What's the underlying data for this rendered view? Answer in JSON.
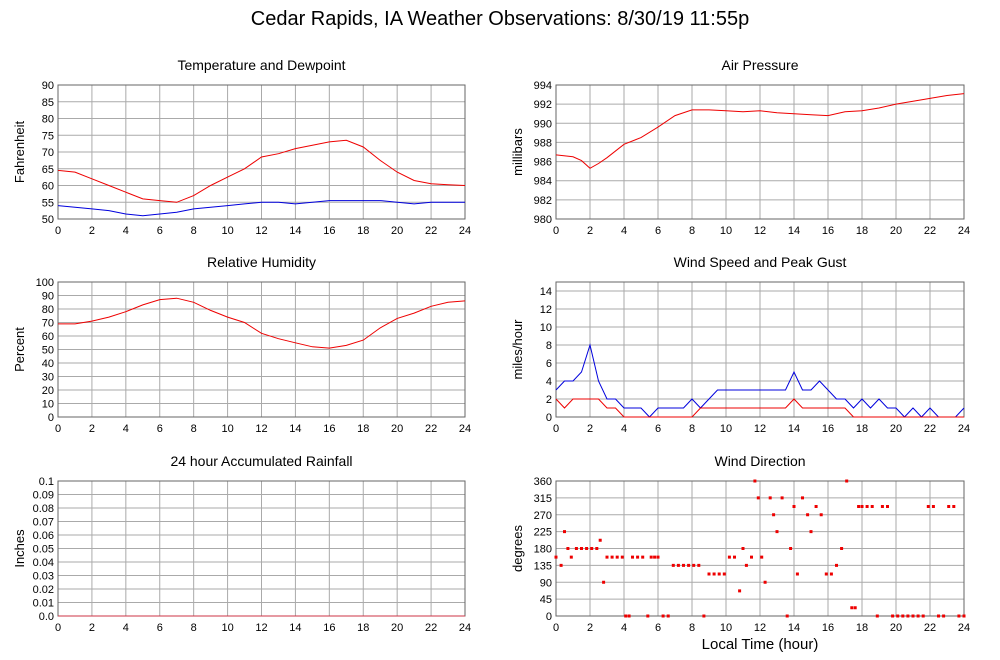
{
  "title": "Cedar Rapids, IA Weather Observations: 8/30/19 11:55p",
  "x_caption": "Local Time (hour)",
  "colors": {
    "red": "#ee0000",
    "blue": "#0000dd",
    "grid": "#aaaaaa",
    "frame": "#666666",
    "rain": "#cc3344"
  },
  "chart_data": [
    {
      "id": "temp",
      "type": "line",
      "title": "Temperature and Dewpoint",
      "ylabel": "Fahrenheit",
      "xlim": [
        0,
        24
      ],
      "ylim": [
        50,
        90
      ],
      "yticks": [
        "50",
        "55",
        "60",
        "65",
        "70",
        "75",
        "80",
        "85",
        "90"
      ],
      "xticks": [
        "0",
        "2",
        "4",
        "6",
        "8",
        "10",
        "12",
        "14",
        "16",
        "18",
        "20",
        "22",
        "24"
      ],
      "noise": 0,
      "series": [
        {
          "color": "#ee0000",
          "x": [
            0,
            1,
            2,
            3,
            4,
            5,
            6,
            7,
            8,
            9,
            10,
            11,
            12,
            13,
            14,
            15,
            16,
            17,
            18,
            19,
            20,
            21,
            22,
            23,
            24
          ],
          "values": [
            64.5,
            64,
            62,
            60,
            58,
            56,
            55.5,
            55,
            57,
            60,
            62.5,
            65,
            68.5,
            69.5,
            71,
            72,
            73,
            73.5,
            71.5,
            67.5,
            64,
            61.5,
            60.5,
            60.2,
            60
          ]
        },
        {
          "color": "#0000dd",
          "x": [
            0,
            1,
            2,
            3,
            4,
            5,
            6,
            7,
            8,
            9,
            10,
            11,
            12,
            13,
            14,
            15,
            16,
            17,
            18,
            19,
            20,
            21,
            22,
            23,
            24
          ],
          "values": [
            54,
            53.5,
            53,
            52.5,
            51.5,
            51,
            51.5,
            52,
            53,
            53.5,
            54,
            54.5,
            55,
            55,
            54.5,
            55,
            55.5,
            55.5,
            55.5,
            55.5,
            55,
            54.5,
            55,
            55,
            55
          ]
        }
      ]
    },
    {
      "id": "pressure",
      "type": "line",
      "title": "Air Pressure",
      "ylabel": "millibars",
      "xlim": [
        0,
        24
      ],
      "ylim": [
        980,
        994
      ],
      "yticks": [
        "980",
        "982",
        "984",
        "986",
        "988",
        "990",
        "992",
        "994"
      ],
      "xticks": [
        "0",
        "2",
        "4",
        "6",
        "8",
        "10",
        "12",
        "14",
        "16",
        "18",
        "20",
        "22",
        "24"
      ],
      "series": [
        {
          "color": "#ee0000",
          "x": [
            0,
            1,
            1.5,
            2,
            2.5,
            3,
            4,
            5,
            6,
            7,
            8,
            9,
            10,
            11,
            12,
            13,
            14,
            15,
            16,
            17,
            18,
            19,
            20,
            21,
            22,
            23,
            24
          ],
          "values": [
            986.7,
            986.5,
            986.1,
            985.3,
            985.8,
            986.4,
            987.8,
            988.5,
            989.6,
            990.8,
            991.4,
            991.4,
            991.3,
            991.2,
            991.3,
            991.1,
            991.0,
            990.9,
            990.8,
            991.2,
            991.3,
            991.6,
            992.0,
            992.3,
            992.6,
            992.9,
            993.1
          ]
        }
      ]
    },
    {
      "id": "humidity",
      "type": "line",
      "title": "Relative Humidity",
      "ylabel": "Percent",
      "xlim": [
        0,
        24
      ],
      "ylim": [
        0,
        100
      ],
      "yticks": [
        "0",
        "10",
        "20",
        "30",
        "40",
        "50",
        "60",
        "70",
        "80",
        "90",
        "100"
      ],
      "xticks": [
        "0",
        "2",
        "4",
        "6",
        "8",
        "10",
        "12",
        "14",
        "16",
        "18",
        "20",
        "22",
        "24"
      ],
      "series": [
        {
          "color": "#ee0000",
          "x": [
            0,
            1,
            2,
            3,
            4,
            5,
            6,
            7,
            8,
            9,
            10,
            11,
            12,
            13,
            14,
            15,
            16,
            17,
            18,
            19,
            20,
            21,
            22,
            23,
            24
          ],
          "values": [
            69,
            69,
            71,
            74,
            78,
            83,
            87,
            88,
            85,
            79,
            74,
            70,
            62,
            58,
            55,
            52,
            51,
            53,
            57,
            66,
            73,
            77,
            82,
            85,
            86
          ]
        }
      ]
    },
    {
      "id": "wind",
      "type": "line",
      "title": "Wind Speed and Peak Gust",
      "ylabel": "miles/hour",
      "xlim": [
        0,
        24
      ],
      "ylim": [
        0,
        15
      ],
      "yticks": [
        "0",
        "2",
        "4",
        "6",
        "8",
        "10",
        "12",
        "14"
      ],
      "xticks": [
        "0",
        "2",
        "4",
        "6",
        "8",
        "10",
        "12",
        "14",
        "16",
        "18",
        "20",
        "22",
        "24"
      ],
      "series": [
        {
          "color": "#0000dd",
          "x": [
            0,
            0.5,
            1,
            1.5,
            2,
            2.5,
            3,
            3.5,
            4,
            4.5,
            5,
            5.5,
            6,
            6.5,
            7,
            7.5,
            8,
            8.5,
            9,
            9.5,
            10,
            10.5,
            11,
            11.5,
            12,
            12.5,
            13,
            13.5,
            14,
            14.5,
            15,
            15.5,
            16,
            16.5,
            17,
            17.5,
            18,
            18.5,
            19,
            19.5,
            20,
            20.5,
            21,
            21.5,
            22,
            22.5,
            23,
            23.5,
            24
          ],
          "values": [
            3,
            4,
            4,
            5,
            8,
            4,
            2,
            2,
            1,
            1,
            1,
            0,
            1,
            1,
            1,
            1,
            2,
            1,
            2,
            3,
            3,
            3,
            3,
            3,
            3,
            3,
            3,
            3,
            5,
            3,
            3,
            4,
            3,
            2,
            2,
            1,
            2,
            1,
            2,
            1,
            1,
            0,
            1,
            0,
            1,
            0,
            0,
            0,
            1
          ]
        },
        {
          "color": "#ee0000",
          "x": [
            0,
            0.5,
            1,
            1.5,
            2,
            2.5,
            3,
            3.5,
            4,
            4.5,
            5,
            5.5,
            6,
            6.5,
            7,
            7.5,
            8,
            8.5,
            9,
            9.5,
            10,
            10.5,
            11,
            11.5,
            12,
            12.5,
            13,
            13.5,
            14,
            14.5,
            15,
            15.5,
            16,
            16.5,
            17,
            17.5,
            18,
            18.5,
            19,
            19.5,
            20,
            20.5,
            21,
            21.5,
            22,
            22.5,
            23,
            23.5,
            24
          ],
          "values": [
            2,
            1,
            2,
            2,
            2,
            2,
            1,
            1,
            0,
            0,
            0,
            0,
            0,
            0,
            0,
            0,
            0,
            1,
            1,
            1,
            1,
            1,
            1,
            1,
            1,
            1,
            1,
            1,
            2,
            1,
            1,
            1,
            1,
            1,
            1,
            0,
            0,
            0,
            0,
            0,
            0,
            0,
            0,
            0,
            0,
            0,
            0,
            0,
            0
          ]
        }
      ]
    },
    {
      "id": "rain",
      "type": "line",
      "title": "24 hour Accumulated Rainfall",
      "ylabel": "Inches",
      "xlim": [
        0,
        24
      ],
      "ylim": [
        0,
        0.1
      ],
      "yticks": [
        "0.0",
        "0.01",
        "0.02",
        "0.03",
        "0.04",
        "0.05",
        "0.06",
        "0.07",
        "0.08",
        "0.09",
        "0.1"
      ],
      "xticks": [
        "0",
        "2",
        "4",
        "6",
        "8",
        "10",
        "12",
        "14",
        "16",
        "18",
        "20",
        "22",
        "24"
      ],
      "series": [
        {
          "color": "#cc3344",
          "x": [
            0,
            24
          ],
          "values": [
            0,
            0
          ]
        }
      ]
    },
    {
      "id": "direction",
      "type": "scatter",
      "title": "Wind Direction",
      "ylabel": "degrees",
      "xlim": [
        0,
        24
      ],
      "ylim": [
        0,
        360
      ],
      "yticks": [
        "0",
        "45",
        "90",
        "135",
        "180",
        "225",
        "270",
        "315",
        "360"
      ],
      "xticks": [
        "0",
        "2",
        "4",
        "6",
        "8",
        "10",
        "12",
        "14",
        "16",
        "18",
        "20",
        "22",
        "24"
      ],
      "series": [
        {
          "color": "#ee0000",
          "x": [
            0,
            0.3,
            0.5,
            0.7,
            0.9,
            1.2,
            1.5,
            1.8,
            2.1,
            2.4,
            2.6,
            2.8,
            3.0,
            3.3,
            3.6,
            3.9,
            4.1,
            4.3,
            4.5,
            4.8,
            5.1,
            5.4,
            5.6,
            5.8,
            6.0,
            6.3,
            6.6,
            6.9,
            7.2,
            7.5,
            7.8,
            8.1,
            8.4,
            8.7,
            9.0,
            9.3,
            9.6,
            9.9,
            10.2,
            10.5,
            10.8,
            11.0,
            11.2,
            11.5,
            11.7,
            11.9,
            12.1,
            12.3,
            12.6,
            12.8,
            13.0,
            13.3,
            13.6,
            13.8,
            14.0,
            14.2,
            14.5,
            14.8,
            15.0,
            15.3,
            15.6,
            15.9,
            16.2,
            16.5,
            16.8,
            17.1,
            17.4,
            17.6,
            17.8,
            18.0,
            18.3,
            18.6,
            18.9,
            19.2,
            19.5,
            19.8,
            20.1,
            20.4,
            20.7,
            21.0,
            21.3,
            21.6,
            21.9,
            22.2,
            22.5,
            22.8,
            23.1,
            23.4,
            23.7,
            24.0
          ],
          "values": [
            157,
            135,
            225,
            180,
            157,
            180,
            180,
            180,
            180,
            180,
            202,
            90,
            157,
            157,
            157,
            157,
            0,
            0,
            157,
            157,
            157,
            0,
            157,
            157,
            157,
            0,
            0,
            135,
            135,
            135,
            135,
            135,
            135,
            0,
            112,
            112,
            112,
            112,
            157,
            157,
            67,
            180,
            135,
            157,
            360,
            315,
            157,
            90,
            315,
            270,
            225,
            315,
            0,
            180,
            292,
            112,
            315,
            270,
            225,
            292,
            270,
            112,
            112,
            135,
            180,
            360,
            22,
            22,
            292,
            292,
            292,
            292,
            0,
            292,
            292,
            0,
            0,
            0,
            0,
            0,
            0,
            0,
            292,
            292,
            0,
            0,
            292,
            292,
            0,
            0
          ]
        }
      ]
    }
  ]
}
